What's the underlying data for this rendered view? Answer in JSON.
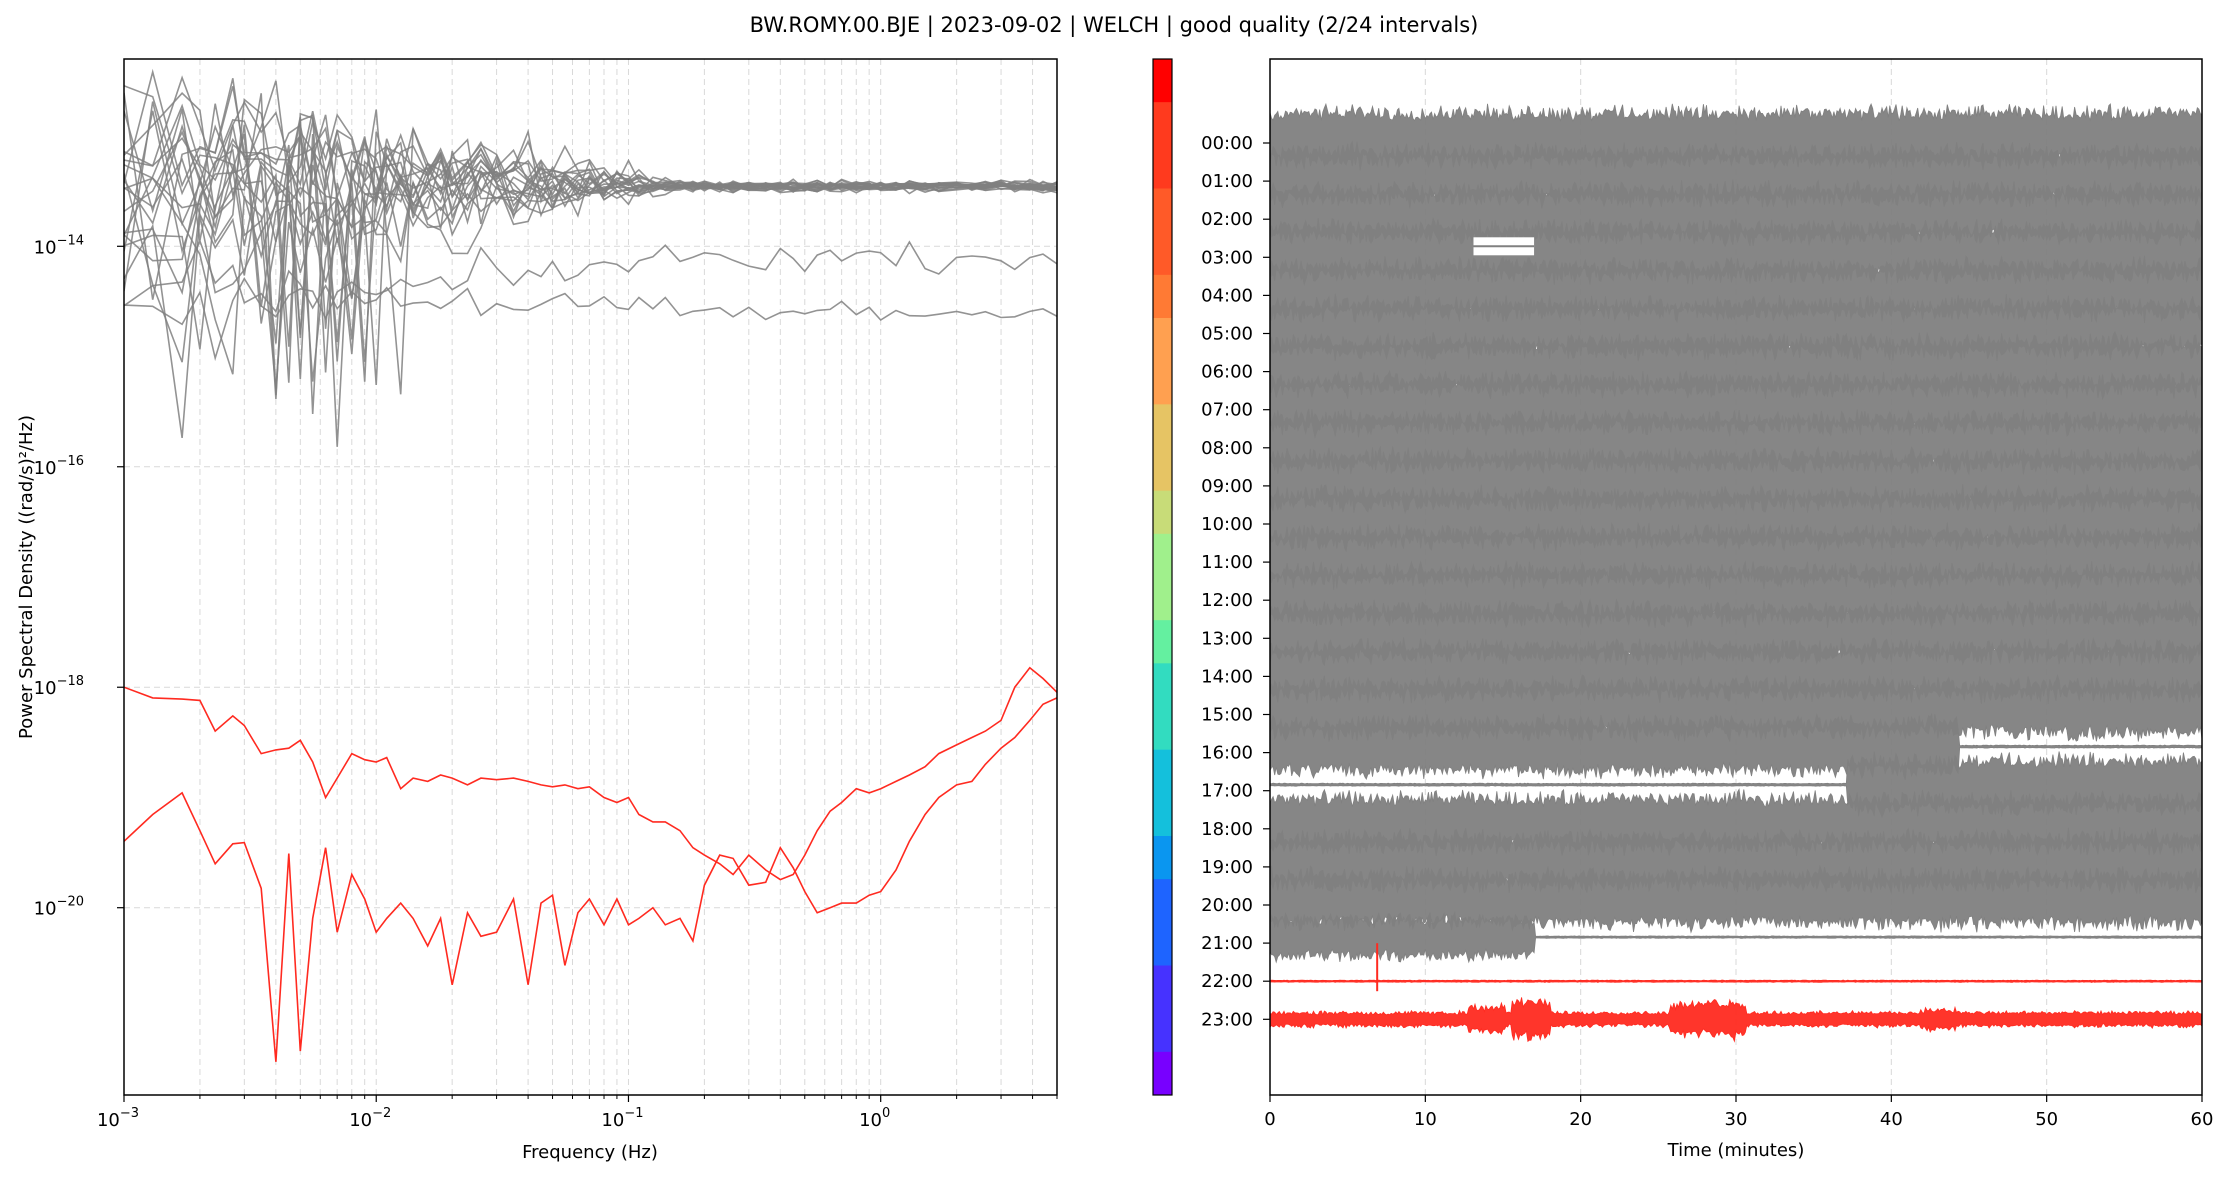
{
  "figure": {
    "title": "BW.ROMY.00.BJE | 2023-09-02 | WELCH | good quality (2/24 intervals)"
  },
  "colors": {
    "bad": "#808080",
    "good": "#ff2a20",
    "grid": "#d9d9d9"
  },
  "chart_data": [
    {
      "type": "line",
      "name": "psd",
      "xlabel": "Frequency (Hz)",
      "ylabel": "Power Spectral Density ((rad/s)²/Hz)",
      "x_scale": "log",
      "y_scale": "log",
      "xlim": [
        0.001,
        5
      ],
      "ylim": [
        2e-22,
        5e-13
      ],
      "x_ticks": [
        {
          "value": 0.001,
          "base": "10",
          "exp": "−3"
        },
        {
          "value": 0.01,
          "base": "10",
          "exp": "−2"
        },
        {
          "value": 0.1,
          "base": "10",
          "exp": "−1"
        },
        {
          "value": 1,
          "base": "10",
          "exp": "0"
        }
      ],
      "y_ticks": [
        {
          "value": 1e-14,
          "base": "10",
          "exp": "−14"
        },
        {
          "value": 1e-16,
          "base": "10",
          "exp": "−16"
        },
        {
          "value": 1e-18,
          "base": "10",
          "exp": "−18"
        },
        {
          "value": 1e-20,
          "base": "10",
          "exp": "−20"
        }
      ],
      "grid": true,
      "frequencies": [
        0.001,
        0.0013,
        0.0017,
        0.002,
        0.0023,
        0.0027,
        0.003,
        0.0035,
        0.004,
        0.0045,
        0.005,
        0.0056,
        0.0063,
        0.007,
        0.008,
        0.009,
        0.01,
        0.011,
        0.0125,
        0.014,
        0.016,
        0.018,
        0.02,
        0.023,
        0.026,
        0.03,
        0.035,
        0.04,
        0.045,
        0.05,
        0.056,
        0.063,
        0.07,
        0.08,
        0.09,
        0.1,
        0.11,
        0.125,
        0.14,
        0.16,
        0.18,
        0.2,
        0.23,
        0.26,
        0.3,
        0.35,
        0.4,
        0.45,
        0.5,
        0.56,
        0.63,
        0.7,
        0.8,
        0.9,
        1.0,
        1.15,
        1.3,
        1.5,
        1.7,
        2.0,
        2.3,
        2.6,
        3.0,
        3.4,
        3.9,
        4.4,
        5.0
      ],
      "good_series": [
        {
          "values": [
            1e-18,
            8e-19,
            7.8e-19,
            7.6e-19,
            4e-19,
            5.5e-19,
            4.5e-19,
            2.5e-19,
            2.7e-19,
            2.8e-19,
            3.3e-19,
            2.1e-19,
            1e-19,
            1.5e-19,
            2.5e-19,
            2.2e-19,
            2.1e-19,
            2.3e-19,
            1.2e-19,
            1.5e-19,
            1.4e-19,
            1.6e-19,
            1.5e-19,
            1.3e-19,
            1.5e-19,
            1.45e-19,
            1.5e-19,
            1.4e-19,
            1.3e-19,
            1.25e-19,
            1.3e-19,
            1.2e-19,
            1.25e-19,
            1e-19,
            9e-20,
            1e-19,
            7e-20,
            6e-20,
            6e-20,
            5e-20,
            3.5e-20,
            3e-20,
            2.5e-20,
            2e-20,
            3e-20,
            2.2e-20,
            1.8e-20,
            2e-20,
            3e-20,
            5e-20,
            7.5e-20,
            9e-20,
            1.2e-19,
            1.1e-19,
            1.2e-19,
            1.4e-19,
            1.6e-19,
            1.9e-19,
            2.5e-19,
            3e-19,
            3.5e-19,
            4e-19,
            5e-19,
            1e-18,
            1.5e-18,
            1.2e-18,
            9e-19
          ]
        },
        {
          "values": [
            4e-20,
            7e-20,
            1.1e-19,
            5e-20,
            2.5e-20,
            3.8e-20,
            3.9e-20,
            1.5e-20,
            4e-22,
            3.1e-20,
            5e-22,
            8e-21,
            3.5e-20,
            6e-21,
            2e-20,
            1.2e-20,
            6e-21,
            8e-21,
            1.1e-20,
            8e-21,
            4.5e-21,
            8e-21,
            2e-21,
            9e-21,
            5.5e-21,
            6e-21,
            1.2e-20,
            2e-21,
            1.1e-20,
            1.3e-20,
            3e-21,
            9e-21,
            1.2e-20,
            7e-21,
            1.2e-20,
            7e-21,
            8e-21,
            1e-20,
            7e-21,
            8e-21,
            5e-21,
            1.6e-20,
            3e-20,
            2.8e-20,
            1.6e-20,
            1.7e-20,
            3.5e-20,
            2.3e-20,
            1.4e-20,
            9e-21,
            1e-20,
            1.1e-20,
            1.1e-20,
            1.3e-20,
            1.4e-20,
            2.2e-20,
            4e-20,
            7e-20,
            1e-19,
            1.3e-19,
            1.4e-19,
            2e-19,
            2.8e-19,
            3.5e-19,
            5e-19,
            7e-19,
            8e-19
          ]
        }
      ],
      "bad_series_count": 22,
      "bad_series_note_level": [
        1.9e-14,
        3e-14,
        5e-14,
        8e-14,
        1.2e-13,
        2e-14,
        2.8e-14,
        4e-14,
        6e-14,
        9e-14,
        1.6e-14,
        3.5e-14,
        5.5e-14,
        7e-14,
        2.4e-14,
        4.5e-14,
        6.5e-14,
        1e-13,
        3.2e-14,
        8.5e-15,
        2e-15,
        5e-15
      ]
    },
    {
      "type": "heatmap",
      "name": "colorbar",
      "colormap": "rainbow",
      "ylim": [
        0,
        24
      ]
    },
    {
      "type": "line",
      "name": "waveforms",
      "xlabel": "Time (minutes)",
      "xlim": [
        0,
        60
      ],
      "x_ticks": [
        0,
        10,
        20,
        30,
        40,
        50,
        60
      ],
      "hour_labels": [
        "00:00",
        "01:00",
        "02:00",
        "03:00",
        "04:00",
        "05:00",
        "06:00",
        "07:00",
        "08:00",
        "09:00",
        "10:00",
        "11:00",
        "12:00",
        "13:00",
        "14:00",
        "15:00",
        "16:00",
        "17:00",
        "18:00",
        "19:00",
        "20:00",
        "21:00",
        "22:00",
        "23:00"
      ],
      "good_rows": [
        22,
        23
      ],
      "grid": true
    }
  ]
}
